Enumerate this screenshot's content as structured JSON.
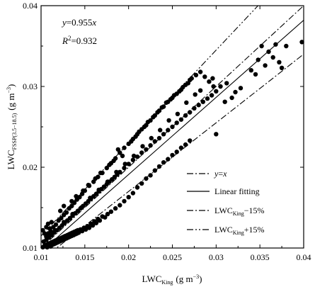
{
  "chart_data": {
    "type": "scatter",
    "title": "",
    "xlabel": {
      "base": "LWC",
      "sub": "King",
      "unit_pre": "(g m",
      "unit_sup": "−3",
      "unit_post": ")"
    },
    "ylabel": {
      "base": "LWC",
      "sub": "FSSP(3.5−18.5)",
      "unit_pre": "(g m",
      "unit_sup": "−3",
      "unit_post": ")"
    },
    "xlim": [
      0.01,
      0.04
    ],
    "ylim": [
      0.01,
      0.04
    ],
    "xticks": [
      "0.01",
      "0.015",
      "0.02",
      "0.025",
      "0.03",
      "0.035",
      "0.04"
    ],
    "xtick_values": [
      0.01,
      0.015,
      0.02,
      0.025,
      0.03,
      0.035,
      0.04
    ],
    "yticks": [
      "0.01",
      "0.02",
      "0.03",
      "0.04"
    ],
    "ytick_values": [
      0.01,
      0.02,
      0.03,
      0.04
    ],
    "grid": false,
    "annotations": {
      "equation": {
        "var_y": "y",
        "eq": "=0.955",
        "var_x": "x"
      },
      "r2": {
        "base": "R",
        "sup": "2",
        "rest": "=0.932"
      }
    },
    "legend": {
      "placement": "lower-right",
      "entries": [
        {
          "key": "yx",
          "style": "dashdot",
          "parts": [
            {
              "t": "y",
              "i": true
            },
            {
              "t": "="
            },
            {
              "t": "x",
              "i": true
            }
          ]
        },
        {
          "key": "fit",
          "style": "solid",
          "parts": [
            {
              "t": "Linear fitting"
            }
          ]
        },
        {
          "key": "minus15",
          "style": "dashdot",
          "parts": [
            {
              "t": "LWC"
            },
            {
              "t": "King",
              "sub": true
            },
            {
              "t": "−15%"
            }
          ]
        },
        {
          "key": "plus15",
          "style": "dashdotdot",
          "parts": [
            {
              "t": "LWC"
            },
            {
              "t": "King",
              "sub": true
            },
            {
              "t": "+15%"
            }
          ]
        }
      ]
    },
    "lines": [
      {
        "name": "y=x",
        "slope": 1.0,
        "style": "dashdot"
      },
      {
        "name": "Linear fitting",
        "slope": 0.955,
        "style": "solid"
      },
      {
        "name": "LWCKing−15%",
        "slope": 0.85,
        "style": "dashdot"
      },
      {
        "name": "LWCKing+15%",
        "slope": 1.15,
        "style": "dashdotdot"
      }
    ],
    "points": [
      [
        0.0102,
        0.0101
      ],
      [
        0.0104,
        0.0103
      ],
      [
        0.0105,
        0.0102
      ],
      [
        0.0106,
        0.0104
      ],
      [
        0.0107,
        0.0101
      ],
      [
        0.0108,
        0.0105
      ],
      [
        0.0109,
        0.0103
      ],
      [
        0.011,
        0.0106
      ],
      [
        0.0111,
        0.0102
      ],
      [
        0.0112,
        0.0107
      ],
      [
        0.0113,
        0.0104
      ],
      [
        0.0114,
        0.0108
      ],
      [
        0.0115,
        0.0105
      ],
      [
        0.0116,
        0.0109
      ],
      [
        0.0117,
        0.0106
      ],
      [
        0.0118,
        0.011
      ],
      [
        0.0119,
        0.0107
      ],
      [
        0.012,
        0.0111
      ],
      [
        0.0121,
        0.0108
      ],
      [
        0.0122,
        0.0112
      ],
      [
        0.0123,
        0.0109
      ],
      [
        0.0124,
        0.0113
      ],
      [
        0.0125,
        0.011
      ],
      [
        0.0126,
        0.0114
      ],
      [
        0.0127,
        0.0111
      ],
      [
        0.0128,
        0.0115
      ],
      [
        0.0129,
        0.0112
      ],
      [
        0.013,
        0.0116
      ],
      [
        0.0131,
        0.0113
      ],
      [
        0.0132,
        0.0117
      ],
      [
        0.0133,
        0.0114
      ],
      [
        0.0134,
        0.0118
      ],
      [
        0.0135,
        0.0115
      ],
      [
        0.0136,
        0.0119
      ],
      [
        0.0137,
        0.0116
      ],
      [
        0.0138,
        0.012
      ],
      [
        0.0139,
        0.0117
      ],
      [
        0.014,
        0.0121
      ],
      [
        0.0141,
        0.0118
      ],
      [
        0.0142,
        0.0122
      ],
      [
        0.0143,
        0.0119
      ],
      [
        0.0145,
        0.0123
      ],
      [
        0.0147,
        0.0121
      ],
      [
        0.0149,
        0.0125
      ],
      [
        0.0151,
        0.0123
      ],
      [
        0.0153,
        0.0127
      ],
      [
        0.0155,
        0.0125
      ],
      [
        0.0157,
        0.013
      ],
      [
        0.0159,
        0.0128
      ],
      [
        0.0161,
        0.0133
      ],
      [
        0.0163,
        0.0131
      ],
      [
        0.0165,
        0.0136
      ],
      [
        0.0167,
        0.0134
      ],
      [
        0.017,
        0.0139
      ],
      [
        0.0173,
        0.0138
      ],
      [
        0.0176,
        0.0142
      ],
      [
        0.018,
        0.0145
      ],
      [
        0.0185,
        0.0149
      ],
      [
        0.019,
        0.0153
      ],
      [
        0.0195,
        0.0158
      ],
      [
        0.02,
        0.0163
      ],
      [
        0.0205,
        0.0168
      ],
      [
        0.021,
        0.0175
      ],
      [
        0.0215,
        0.018
      ],
      [
        0.022,
        0.0186
      ],
      [
        0.0225,
        0.019
      ],
      [
        0.023,
        0.0196
      ],
      [
        0.0235,
        0.0201
      ],
      [
        0.024,
        0.0206
      ],
      [
        0.0245,
        0.021
      ],
      [
        0.025,
        0.0215
      ],
      [
        0.0255,
        0.0219
      ],
      [
        0.026,
        0.0224
      ],
      [
        0.0265,
        0.0228
      ],
      [
        0.027,
        0.0233
      ],
      [
        0.0103,
        0.0108
      ],
      [
        0.0106,
        0.011
      ],
      [
        0.0109,
        0.0113
      ],
      [
        0.0112,
        0.0116
      ],
      [
        0.0115,
        0.0119
      ],
      [
        0.0118,
        0.0122
      ],
      [
        0.0121,
        0.0125
      ],
      [
        0.0124,
        0.0128
      ],
      [
        0.0127,
        0.0131
      ],
      [
        0.013,
        0.0134
      ],
      [
        0.0133,
        0.0137
      ],
      [
        0.0136,
        0.014
      ],
      [
        0.0139,
        0.0143
      ],
      [
        0.0142,
        0.0146
      ],
      [
        0.0145,
        0.0149
      ],
      [
        0.0148,
        0.0152
      ],
      [
        0.0151,
        0.0155
      ],
      [
        0.0154,
        0.0158
      ],
      [
        0.0157,
        0.0161
      ],
      [
        0.016,
        0.0164
      ],
      [
        0.0163,
        0.0167
      ],
      [
        0.0166,
        0.017
      ],
      [
        0.0169,
        0.0173
      ],
      [
        0.0172,
        0.0176
      ],
      [
        0.0175,
        0.0179
      ],
      [
        0.0178,
        0.0182
      ],
      [
        0.0181,
        0.0185
      ],
      [
        0.0184,
        0.0188
      ],
      [
        0.0187,
        0.0191
      ],
      [
        0.019,
        0.0194
      ],
      [
        0.0195,
        0.0199
      ],
      [
        0.02,
        0.0204
      ],
      [
        0.0205,
        0.0209
      ],
      [
        0.021,
        0.0213
      ],
      [
        0.0215,
        0.0218
      ],
      [
        0.022,
        0.0222
      ],
      [
        0.0225,
        0.0227
      ],
      [
        0.023,
        0.0232
      ],
      [
        0.0235,
        0.0236
      ],
      [
        0.024,
        0.0241
      ],
      [
        0.0245,
        0.0246
      ],
      [
        0.025,
        0.025
      ],
      [
        0.0255,
        0.0255
      ],
      [
        0.026,
        0.0259
      ],
      [
        0.0265,
        0.0264
      ],
      [
        0.027,
        0.0268
      ],
      [
        0.0275,
        0.0273
      ],
      [
        0.028,
        0.0277
      ],
      [
        0.0285,
        0.0281
      ],
      [
        0.029,
        0.0285
      ],
      [
        0.0295,
        0.0289
      ],
      [
        0.03,
        0.0294
      ],
      [
        0.0108,
        0.0118
      ],
      [
        0.0111,
        0.0121
      ],
      [
        0.0114,
        0.0126
      ],
      [
        0.0117,
        0.0129
      ],
      [
        0.012,
        0.0134
      ],
      [
        0.0123,
        0.0137
      ],
      [
        0.0126,
        0.0141
      ],
      [
        0.0129,
        0.0144
      ],
      [
        0.0132,
        0.0149
      ],
      [
        0.0135,
        0.0152
      ],
      [
        0.0138,
        0.0156
      ],
      [
        0.0141,
        0.016
      ],
      [
        0.0144,
        0.0163
      ],
      [
        0.0147,
        0.0167
      ],
      [
        0.015,
        0.0171
      ],
      [
        0.0155,
        0.0177
      ],
      [
        0.016,
        0.0182
      ],
      [
        0.0165,
        0.0188
      ],
      [
        0.017,
        0.0193
      ],
      [
        0.0175,
        0.0199
      ],
      [
        0.018,
        0.0205
      ],
      [
        0.0185,
        0.0211
      ],
      [
        0.019,
        0.0218
      ],
      [
        0.0195,
        0.0224
      ],
      [
        0.02,
        0.0229
      ],
      [
        0.0205,
        0.0235
      ],
      [
        0.021,
        0.0241
      ],
      [
        0.0215,
        0.0247
      ],
      [
        0.022,
        0.0252
      ],
      [
        0.0225,
        0.0258
      ],
      [
        0.023,
        0.0264
      ],
      [
        0.0235,
        0.027
      ],
      [
        0.024,
        0.0275
      ],
      [
        0.0245,
        0.0281
      ],
      [
        0.025,
        0.0286
      ],
      [
        0.0255,
        0.0291
      ],
      [
        0.026,
        0.0296
      ],
      [
        0.0265,
        0.0302
      ],
      [
        0.027,
        0.0308
      ],
      [
        0.0102,
        0.0122
      ],
      [
        0.0104,
        0.0118
      ],
      [
        0.0106,
        0.0126
      ],
      [
        0.0108,
        0.013
      ],
      [
        0.011,
        0.0124
      ],
      [
        0.0112,
        0.0132
      ],
      [
        0.0122,
        0.0146
      ],
      [
        0.0126,
        0.0152
      ],
      [
        0.0135,
        0.0158
      ],
      [
        0.014,
        0.0164
      ],
      [
        0.0148,
        0.0171
      ],
      [
        0.0154,
        0.0178
      ],
      [
        0.0162,
        0.0186
      ],
      [
        0.0168,
        0.0193
      ],
      [
        0.0178,
        0.0203
      ],
      [
        0.0183,
        0.0208
      ],
      [
        0.0188,
        0.0222
      ],
      [
        0.0193,
        0.0214
      ],
      [
        0.0203,
        0.0232
      ],
      [
        0.0208,
        0.0238
      ],
      [
        0.0212,
        0.0244
      ],
      [
        0.0218,
        0.025
      ],
      [
        0.0222,
        0.0256
      ],
      [
        0.0228,
        0.0262
      ],
      [
        0.0233,
        0.0268
      ],
      [
        0.0238,
        0.0274
      ],
      [
        0.0243,
        0.028
      ],
      [
        0.0248,
        0.0284
      ],
      [
        0.0252,
        0.0289
      ],
      [
        0.0258,
        0.0294
      ],
      [
        0.0262,
        0.0299
      ],
      [
        0.0268,
        0.0304
      ],
      [
        0.0272,
        0.031
      ],
      [
        0.0277,
        0.0314
      ],
      [
        0.0282,
        0.0318
      ],
      [
        0.0287,
        0.0312
      ],
      [
        0.0292,
        0.0306
      ],
      [
        0.0297,
        0.03
      ],
      [
        0.03,
        0.0241
      ],
      [
        0.031,
        0.0281
      ],
      [
        0.0318,
        0.0286
      ],
      [
        0.0322,
        0.0293
      ],
      [
        0.0328,
        0.0298
      ],
      [
        0.034,
        0.032
      ],
      [
        0.0345,
        0.0315
      ],
      [
        0.0348,
        0.0333
      ],
      [
        0.0352,
        0.035
      ],
      [
        0.0356,
        0.0326
      ],
      [
        0.036,
        0.0343
      ],
      [
        0.0365,
        0.0336
      ],
      [
        0.0368,
        0.0352
      ],
      [
        0.0372,
        0.033
      ],
      [
        0.0375,
        0.0323
      ],
      [
        0.038,
        0.035
      ],
      [
        0.0398,
        0.0355
      ],
      [
        0.0282,
        0.0295
      ],
      [
        0.0296,
        0.031
      ],
      [
        0.0305,
        0.03
      ],
      [
        0.0312,
        0.0304
      ],
      [
        0.0276,
        0.029
      ],
      [
        0.0266,
        0.028
      ],
      [
        0.0256,
        0.0266
      ],
      [
        0.0246,
        0.0258
      ],
      [
        0.0236,
        0.0246
      ],
      [
        0.0226,
        0.0236
      ],
      [
        0.0216,
        0.0226
      ],
      [
        0.0206,
        0.0214
      ],
      [
        0.0196,
        0.0204
      ],
      [
        0.0186,
        0.0194
      ],
      [
        0.0176,
        0.0182
      ],
      [
        0.0166,
        0.0172
      ],
      [
        0.0156,
        0.0162
      ],
      [
        0.0146,
        0.015
      ],
      [
        0.0136,
        0.0142
      ],
      [
        0.0126,
        0.0132
      ],
      [
        0.0116,
        0.0122
      ],
      [
        0.0106,
        0.0114
      ]
    ]
  }
}
